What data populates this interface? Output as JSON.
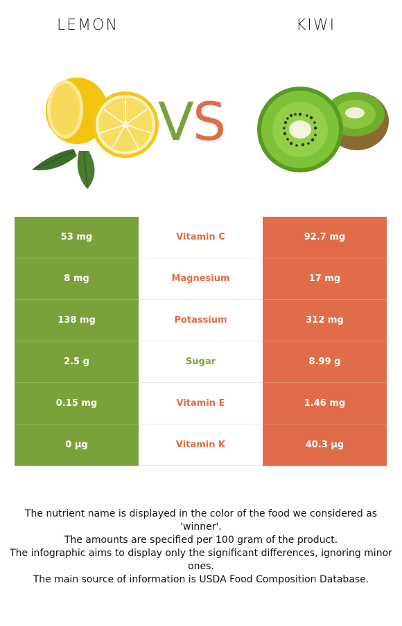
{
  "header": {
    "left_food": "LEMON",
    "right_food": "KIWI",
    "vs_v": "V",
    "vs_s": "S"
  },
  "colors": {
    "left_accent": "#7ba23a",
    "right_accent": "#e06c49"
  },
  "rows": [
    {
      "left": "53 mg",
      "nutrient": "Vitamin C",
      "right": "92.7 mg",
      "winner": "right"
    },
    {
      "left": "8 mg",
      "nutrient": "Magnesium",
      "right": "17 mg",
      "winner": "right"
    },
    {
      "left": "138 mg",
      "nutrient": "Potassium",
      "right": "312 mg",
      "winner": "right"
    },
    {
      "left": "2.5 g",
      "nutrient": "Sugar",
      "right": "8.99 g",
      "winner": "left"
    },
    {
      "left": "0.15 mg",
      "nutrient": "Vitamin E",
      "right": "1.46 mg",
      "winner": "right"
    },
    {
      "left": "0 µg",
      "nutrient": "Vitamin K",
      "right": "40.3 µg",
      "winner": "right"
    }
  ],
  "footnotes": [
    "The nutrient name is displayed in the color of the food we considered as 'winner'.",
    "The amounts are specified per 100 gram of the product.",
    "The infographic aims to display only the significant differences, ignoring minor ones.",
    "The main source of information is USDA Food Composition Database."
  ]
}
